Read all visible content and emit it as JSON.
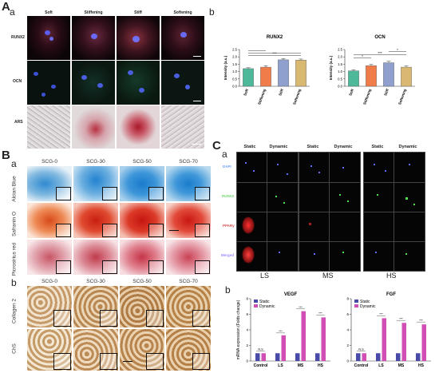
{
  "panelA": {
    "label": "A",
    "sub_a": "a",
    "sub_b": "b",
    "columns": [
      "Soft",
      "Stiffening",
      "Stiff",
      "Softening"
    ],
    "rows": [
      "RUNX2",
      "OCN",
      "ARS"
    ]
  },
  "chart_data": [
    {
      "type": "bar",
      "title": "RUNX2",
      "ylabel": "Intensity (a.u.)",
      "categories": [
        "Soft",
        "Stiffening",
        "Stiff",
        "Softening"
      ],
      "values": [
        1.2,
        1.3,
        1.8,
        1.78
      ],
      "errors": [
        0.06,
        0.1,
        0.08,
        0.07
      ],
      "colors": [
        "#4db89a",
        "#f07c4a",
        "#8f9fce",
        "#d9b872"
      ],
      "ylim": [
        0,
        2.5
      ],
      "yticks": [
        "0.0",
        "0.5",
        "1.0",
        "1.5",
        "2.0",
        "2.5"
      ],
      "significance": [
        "***"
      ]
    },
    {
      "type": "bar",
      "title": "OCN",
      "ylabel": "Intensity (a.u.)",
      "categories": [
        "Soft",
        "Stiffening",
        "Stiff",
        "Softening"
      ],
      "values": [
        1.05,
        1.4,
        1.6,
        1.3
      ],
      "errors": [
        0.06,
        0.08,
        0.1,
        0.08
      ],
      "colors": [
        "#4db89a",
        "#f07c4a",
        "#8f9fce",
        "#d9b872"
      ],
      "ylim": [
        0,
        2.5
      ],
      "yticks": [
        "0.0",
        "0.5",
        "1.0",
        "1.5",
        "2.0",
        "2.5"
      ],
      "significance": [
        "*",
        "***",
        "*"
      ]
    },
    {
      "type": "bar",
      "title": "VEGF",
      "ylabel": "mRNA expression (Folds change)",
      "categories": [
        "Control",
        "LS",
        "MS",
        "HS"
      ],
      "series": [
        {
          "name": "Static",
          "values": [
            1.0,
            1.0,
            1.0,
            1.0
          ],
          "color": "#4a4aa8"
        },
        {
          "name": "Dynamic",
          "values": [
            1.0,
            3.3,
            6.4,
            5.6
          ],
          "color": "#d14fb5"
        }
      ],
      "ylim": [
        0,
        8
      ],
      "yticks": [
        "0",
        "2",
        "4",
        "6",
        "8"
      ],
      "significance": [
        "N.S",
        "***",
        "***",
        "***"
      ]
    },
    {
      "type": "bar",
      "title": "FGF",
      "ylabel": "",
      "categories": [
        "Control",
        "LS",
        "MS",
        "HS"
      ],
      "series": [
        {
          "name": "Static",
          "values": [
            1.0,
            1.0,
            1.0,
            1.0
          ],
          "color": "#4a4aa8"
        },
        {
          "name": "Dynamic",
          "values": [
            1.0,
            5.5,
            4.9,
            4.7
          ],
          "color": "#d14fb5"
        }
      ],
      "ylim": [
        0,
        8
      ],
      "yticks": [
        "0",
        "2",
        "4",
        "6",
        "8"
      ],
      "significance": [
        "N.S",
        "***",
        "***",
        "***"
      ]
    }
  ],
  "panelB": {
    "label": "B",
    "sub_a": "a",
    "sub_b": "b",
    "columns": [
      "SCG-0",
      "SCG-30",
      "SCG-50",
      "SCG-70"
    ],
    "rows_a": [
      "Alcian Blue",
      "Safranin O",
      "Picrosirius red"
    ],
    "rows_b": [
      "Collagen 2",
      "ChS"
    ]
  },
  "panelC": {
    "label": "C",
    "sub_a": "a",
    "sub_b": "b",
    "column_pairs": [
      "Static",
      "Dynamic"
    ],
    "groups": [
      "LS",
      "MS",
      "HS"
    ],
    "rows": [
      "DAPI",
      "RUNX2",
      "PPARγ",
      "Merged"
    ]
  }
}
